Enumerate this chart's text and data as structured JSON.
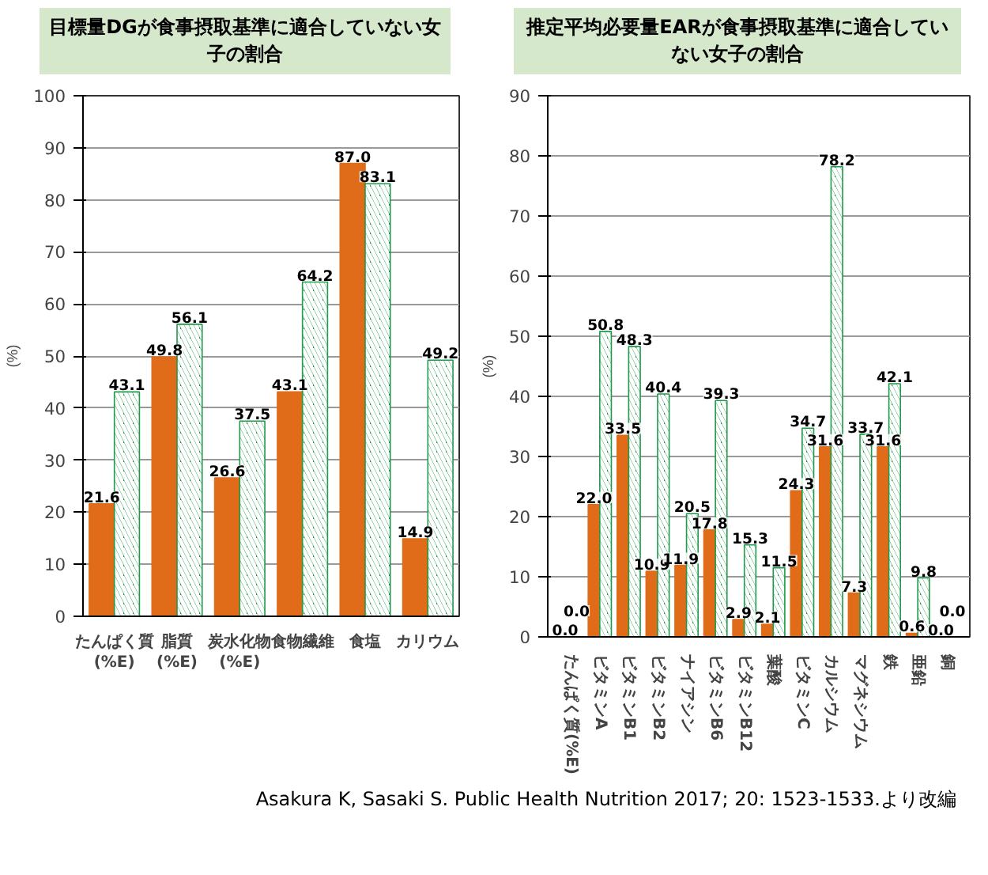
{
  "chart_data": [
    {
      "type": "bar",
      "title": "目標量DGが食事摂取基準に適合していない女子の割合",
      "ylabel": "(%)",
      "categories": [
        "たんぱく質\n(%E)",
        "脂質\n(%E)",
        "炭水化物\n(%E)",
        "食物繊維",
        "食塩",
        "カリウム"
      ],
      "series": [
        {
          "color": "#e06c1a",
          "values": [
            21.6,
            49.8,
            26.6,
            43.1,
            87.0,
            14.9
          ],
          "value_labels": [
            "21.6",
            "49.8",
            "26.6",
            "43.1",
            "87.0",
            "14.9"
          ]
        },
        {
          "color": "#1e9a4a",
          "values": [
            43.1,
            56.1,
            37.5,
            64.2,
            83.1,
            49.2
          ],
          "value_labels": [
            "43.1",
            "56.1",
            "37.5",
            "64.2",
            "83.1",
            "49.2"
          ]
        }
      ],
      "ylim": [
        0,
        100
      ],
      "yticks": [
        0,
        10,
        20,
        30,
        40,
        50,
        60,
        70,
        80,
        90,
        100
      ],
      "grid": "y"
    },
    {
      "type": "bar",
      "title": "推定平均必要量EARが食事摂取基準に適合していない女子の割合",
      "ylabel": "(%)",
      "categories": [
        "たんぱく質(%E)",
        "ビタミンA",
        "ビタミンB1",
        "ビタミンB2",
        "ナイアシン",
        "ビタミンB6",
        "ビタミンB12",
        "葉酸",
        "ビタミンC",
        "カルシウム",
        "マグネシウム",
        "鉄",
        "亜鉛",
        "銅"
      ],
      "series": [
        {
          "color": "#e06c1a",
          "values": [
            0.0,
            22.0,
            33.5,
            10.9,
            11.9,
            17.8,
            2.9,
            2.1,
            24.3,
            31.6,
            7.3,
            31.6,
            0.6,
            0.0
          ],
          "value_labels": [
            "0.0",
            "22.0",
            "33.5",
            "10.9",
            "11.9",
            "17.8",
            "2.9",
            "2.1",
            "24.3",
            "31.6",
            "7.3",
            "31.6",
            "0.6",
            "0.0"
          ]
        },
        {
          "color": "#1e9a4a",
          "values": [
            0.0,
            50.8,
            48.3,
            40.4,
            20.5,
            39.3,
            15.3,
            11.5,
            34.7,
            78.2,
            33.7,
            42.1,
            9.8,
            0.0
          ],
          "value_labels": [
            "0.0",
            "50.8",
            "48.3",
            "40.4",
            "20.5",
            "39.3",
            "15.3",
            "11.5",
            "34.7",
            "78.2",
            "33.7",
            "42.1",
            "9.8",
            "0.0"
          ]
        }
      ],
      "ylim": [
        0,
        90
      ],
      "yticks": [
        0,
        10,
        20,
        30,
        40,
        50,
        60,
        70,
        80,
        90
      ],
      "grid": "y",
      "annotations": [
        "Asakura K, Sasaki S. Public Health Nutrition 2017; 20: 1523-1533.より改編"
      ]
    }
  ]
}
